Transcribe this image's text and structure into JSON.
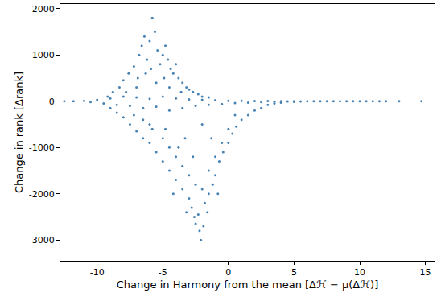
{
  "chart_data": {
    "type": "scatter",
    "x_label": "Change in Harmony from the mean [Δℋ − μ(Δℋ)]",
    "y_label": "Change in rank [Δrank]",
    "color": "#4682b4",
    "marker": "circle",
    "grid": false,
    "xlim": [
      -12.8,
      15.7
    ],
    "ylim": [
      -3450,
      2100
    ],
    "xticks": [
      -10,
      -5,
      0,
      5,
      10,
      15
    ],
    "yticks": [
      -3000,
      -2000,
      -1000,
      0,
      1000,
      2000
    ],
    "x": [
      -12.5,
      -11.8,
      -11,
      -10.5,
      -10,
      -9.5,
      -9,
      -8.5,
      -8,
      -7.5,
      -7,
      -6.5,
      -6,
      -5.5,
      -5,
      -4.5,
      -4,
      -3.5,
      -3,
      -2.5,
      -2,
      -1.5,
      -1,
      -0.5,
      0,
      0.5,
      1,
      1.5,
      2,
      2.5,
      3,
      3.5,
      4,
      4.5,
      5,
      5.5,
      6,
      6.5,
      7,
      7.5,
      8,
      8.5,
      9,
      9.5,
      10,
      10.5,
      11,
      11.5,
      12,
      13,
      14.7,
      -9.2,
      -8.8,
      -8.3,
      -8,
      -7.6,
      -7.2,
      -7,
      -6.8,
      -6.6,
      -6.4,
      -6.2,
      -6,
      -5.8,
      -5.6,
      -5.4,
      -5.2,
      -5,
      -4.8,
      -4.6,
      -4.4,
      -4.2,
      -4,
      -3.8,
      -3.5,
      -3.2,
      -3,
      -2.7,
      -2.3,
      -2,
      -1.5,
      -6.9,
      -5.9,
      -5.5,
      -4.9,
      -6.3,
      -7.8,
      -4.5,
      -3.6,
      -9,
      -8.5,
      -8,
      -7.5,
      -7,
      -6.5,
      -6,
      -5.5,
      -5,
      -4.5,
      -4,
      -3.5,
      -3,
      -2.8,
      -2.6,
      -2.5,
      -2.3,
      -2.1,
      -1.9,
      -1.8,
      -1.5,
      -1.2,
      -1,
      -0.7,
      -0.4,
      0,
      0.3,
      0.6,
      1,
      1.5,
      2,
      2.5,
      3,
      3.5,
      4,
      5,
      -7.2,
      -6.5,
      -5.8,
      -5,
      -4.5,
      -4,
      -3.5,
      -3,
      -2.5,
      -2,
      -1.5,
      -1,
      -0.5,
      0,
      -3.2,
      -2.2,
      -4.2,
      -1.6,
      -0.8,
      -3.8,
      -6,
      -2.7,
      0.5,
      -1.3,
      -4.8,
      -3.3,
      -2
    ],
    "y": [
      0,
      0,
      10,
      -20,
      30,
      -50,
      60,
      -80,
      100,
      -100,
      80,
      -150,
      50,
      -120,
      100,
      -200,
      60,
      -150,
      40,
      -100,
      30,
      -80,
      20,
      -60,
      10,
      -40,
      10,
      -30,
      5,
      -20,
      5,
      -10,
      0,
      -5,
      0,
      -3,
      0,
      -2,
      0,
      0,
      0,
      0,
      0,
      0,
      0,
      0,
      0,
      0,
      0,
      0,
      0,
      100,
      200,
      300,
      450,
      600,
      750,
      300,
      1000,
      1200,
      1400,
      900,
      1300,
      1800,
      1500,
      1100,
      800,
      1000,
      1200,
      900,
      700,
      600,
      800,
      500,
      400,
      300,
      250,
      200,
      150,
      100,
      80,
      500,
      700,
      400,
      500,
      600,
      200,
      300,
      200,
      -150,
      -250,
      -350,
      -500,
      -650,
      -800,
      -900,
      -1100,
      -1300,
      -1500,
      -1700,
      -1900,
      -2100,
      -2300,
      -2500,
      -2650,
      -2450,
      -3000,
      -2700,
      -2200,
      -2000,
      -1800,
      -1600,
      -1300,
      -1100,
      -900,
      -700,
      -550,
      -400,
      -300,
      -200,
      -150,
      -80,
      -50,
      -30,
      -15,
      -300,
      -400,
      -600,
      -800,
      -1000,
      -1200,
      -1400,
      -1600,
      -1800,
      -1900,
      -1500,
      -1200,
      -900,
      -600,
      -2400,
      -2800,
      -2000,
      -2400,
      -2000,
      -1000,
      -500,
      -1200,
      -300,
      -800,
      -600,
      -800,
      -500
    ]
  }
}
